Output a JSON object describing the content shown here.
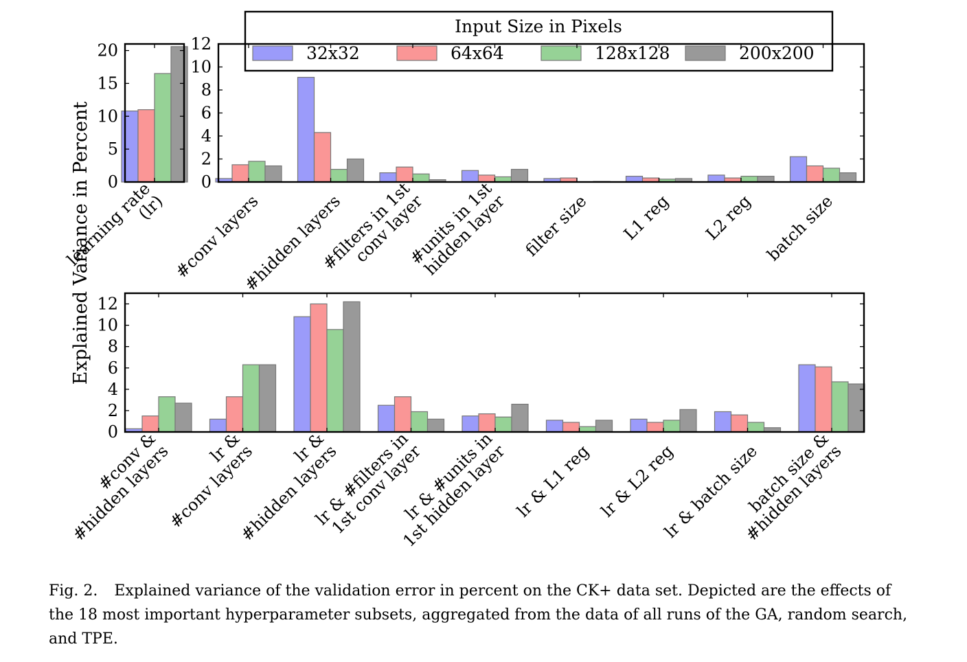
{
  "caption": {
    "label": "Fig. 2.",
    "text": "Explained variance of the validation error in percent on the CK+ data set. Depicted are the effects of the 18 most important hyperparameter subsets, aggregated from the data of all runs of the GA, random search, and TPE."
  },
  "colors": {
    "32x32": "#9b9bfa",
    "64x64": "#fa9696",
    "128x128": "#96d296",
    "200x200": "#999999",
    "bar_edge": "#777777",
    "axis": "#000000"
  },
  "chart_data": [
    {
      "type": "bar",
      "panel": "top-left",
      "ylabel": "Explained Variance in Percent",
      "legend": {
        "title": "Input Size in Pixels",
        "placement": "top-center",
        "entries": [
          "32x32",
          "64x64",
          "128x128",
          "200x200"
        ]
      },
      "ylim": [
        0,
        21
      ],
      "yticks": [
        0,
        5,
        10,
        15,
        20
      ],
      "categories": [
        [
          "learning rate",
          "(lr)"
        ]
      ],
      "series": [
        {
          "name": "32x32",
          "values": [
            10.8
          ]
        },
        {
          "name": "64x64",
          "values": [
            11.0
          ]
        },
        {
          "name": "128x128",
          "values": [
            16.5
          ]
        },
        {
          "name": "200x200",
          "values": [
            20.6
          ]
        }
      ]
    },
    {
      "type": "bar",
      "panel": "top-right",
      "ylim": [
        0,
        12
      ],
      "yticks": [
        0,
        2,
        4,
        6,
        8,
        10,
        12
      ],
      "categories": [
        [
          "#conv layers"
        ],
        [
          "#hidden layers"
        ],
        [
          "#filters in 1st",
          "conv layer"
        ],
        [
          "#units in 1st",
          "hidden layer"
        ],
        [
          "filter size"
        ],
        [
          "L1 reg"
        ],
        [
          "L2 reg"
        ],
        [
          "batch size"
        ]
      ],
      "series": [
        {
          "name": "32x32",
          "values": [
            0.3,
            9.1,
            0.8,
            1.0,
            0.3,
            0.5,
            0.6,
            2.2
          ]
        },
        {
          "name": "64x64",
          "values": [
            1.5,
            4.3,
            1.3,
            0.6,
            0.35,
            0.35,
            0.35,
            1.4
          ]
        },
        {
          "name": "128x128",
          "values": [
            1.8,
            1.1,
            0.7,
            0.45,
            0.02,
            0.25,
            0.5,
            1.2
          ]
        },
        {
          "name": "200x200",
          "values": [
            1.4,
            2.0,
            0.2,
            1.1,
            0.05,
            0.3,
            0.5,
            0.8
          ]
        }
      ]
    },
    {
      "type": "bar",
      "panel": "bottom",
      "ylim": [
        0,
        13
      ],
      "yticks": [
        0,
        2,
        4,
        6,
        8,
        10,
        12
      ],
      "categories": [
        [
          "#conv &",
          "#hidden layers"
        ],
        [
          "lr &",
          "#conv layers"
        ],
        [
          "lr &",
          "#hidden layers"
        ],
        [
          "lr & #filters in",
          "1st conv layer"
        ],
        [
          "lr & #units in",
          "1st hidden layer"
        ],
        [
          "lr & L1 reg"
        ],
        [
          "lr & L2 reg"
        ],
        [
          "lr & batch size"
        ],
        [
          "batch size &",
          "#hidden layers"
        ]
      ],
      "series": [
        {
          "name": "32x32",
          "values": [
            0.3,
            1.2,
            10.8,
            2.5,
            1.5,
            1.1,
            1.2,
            1.9,
            6.3
          ]
        },
        {
          "name": "64x64",
          "values": [
            1.5,
            3.3,
            12.0,
            3.3,
            1.7,
            0.9,
            0.9,
            1.6,
            6.1
          ]
        },
        {
          "name": "128x128",
          "values": [
            3.3,
            6.3,
            9.6,
            1.9,
            1.4,
            0.5,
            1.1,
            0.9,
            4.7
          ]
        },
        {
          "name": "200x200",
          "values": [
            2.7,
            6.3,
            12.2,
            1.2,
            2.6,
            1.1,
            2.1,
            0.4,
            4.5
          ]
        }
      ]
    }
  ]
}
